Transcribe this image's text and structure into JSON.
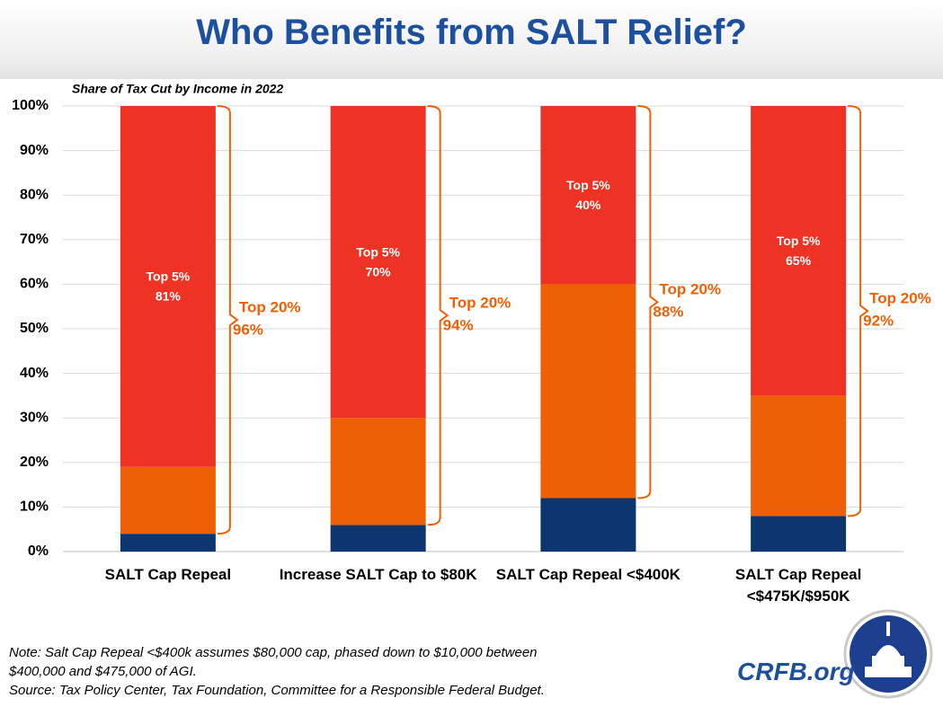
{
  "chart_data": {
    "type": "bar",
    "stacked": true,
    "title": "Who Benefits from SALT Relief?",
    "subtitle": "Share of Tax Cut by Income in 2022",
    "categories": [
      "SALT Cap Repeal",
      "Increase SALT Cap to $80K",
      "SALT Cap Repeal <$400K",
      "SALT Cap Repeal <$475K/$950K"
    ],
    "series": [
      {
        "color": "#0d3570",
        "values": [
          4,
          6,
          12,
          8
        ]
      },
      {
        "color": "#ef6006",
        "values": [
          15,
          24,
          48,
          27
        ]
      },
      {
        "name": "Top 5%",
        "color": "#ee3224",
        "values": [
          81,
          70,
          40,
          65
        ],
        "value_labels": [
          "81%",
          "70%",
          "40%",
          "65%"
        ]
      }
    ],
    "brackets": {
      "label": "Top 20%",
      "color": "#ef6006",
      "values": [
        96,
        94,
        88,
        92
      ],
      "value_labels": [
        "96%",
        "94%",
        "88%",
        "92%"
      ]
    },
    "ylim": [
      0,
      100
    ],
    "yticks": [
      {
        "value": 0,
        "label": "0%"
      },
      {
        "value": 10,
        "label": "10%"
      },
      {
        "value": 20,
        "label": "20%"
      },
      {
        "value": 30,
        "label": "30%"
      },
      {
        "value": 40,
        "label": "40%"
      },
      {
        "value": 50,
        "label": "50%"
      },
      {
        "value": 60,
        "label": "60%"
      },
      {
        "value": 70,
        "label": "70%"
      },
      {
        "value": 80,
        "label": "80%"
      },
      {
        "value": 90,
        "label": "90%"
      },
      {
        "value": 100,
        "label": "100%"
      }
    ],
    "grid": true,
    "notes": [
      "Note: Salt Cap Repeal <$400k assumes $80,000 cap, phased down to $10,000 between",
      "$400,000 and $475,000 of AGI.",
      "Source: Tax Policy Center, Tax Foundation, Committee for a Responsible Federal Budget."
    ],
    "brand": "CRFB.org"
  }
}
